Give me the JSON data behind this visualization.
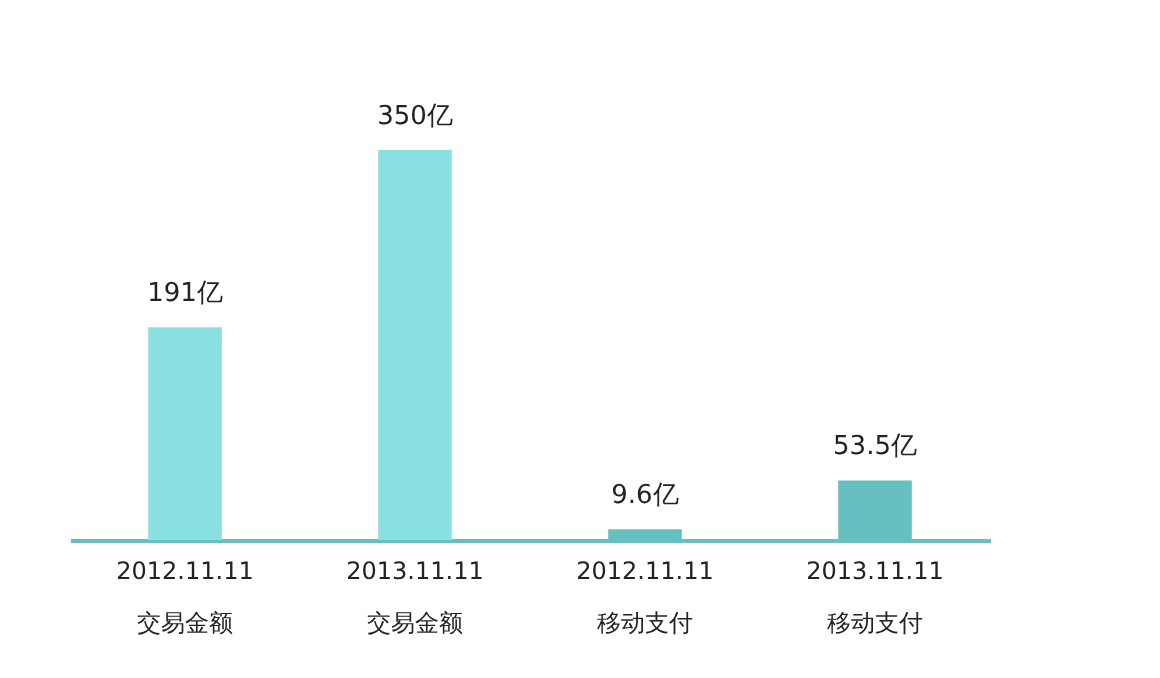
{
  "chart_data": {
    "type": "bar",
    "categories": [
      "2012.11.11\n交易金额",
      "2013.11.11\n交易金额",
      "2012.11.11\n移动支付",
      "2013.11.11\n移动支付"
    ],
    "values": [
      191,
      350,
      9.6,
      53.5
    ],
    "value_labels": [
      "191亿",
      "350亿",
      "9.6亿",
      "53.5亿"
    ],
    "colors": [
      "#8ae0e0",
      "#8ae0e0",
      "#66c0bf",
      "#66c0bf"
    ],
    "grid": false
  }
}
